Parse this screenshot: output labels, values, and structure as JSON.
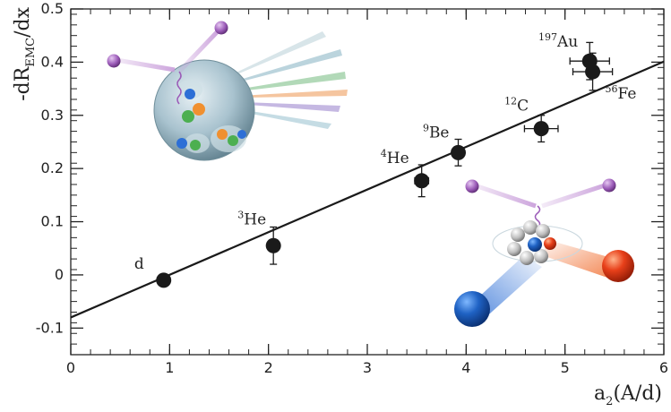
{
  "chart_data": {
    "type": "scatter",
    "title": "",
    "xlabel": "a",
    "xlabel_sub": "2",
    "xlabel_tail": "(A/d)",
    "ylabel": "-dR",
    "ylabel_sub": "EMC",
    "ylabel_tail": "/dx",
    "xlim": [
      0,
      6
    ],
    "ylim": [
      -0.15,
      0.5
    ],
    "xticks": [
      0,
      1,
      2,
      3,
      4,
      5,
      6
    ],
    "xtick_labels": [
      "0",
      "1",
      "2",
      "3",
      "4",
      "5",
      "6"
    ],
    "yticks": [
      -0.1,
      0,
      0.1,
      0.2,
      0.3,
      0.4,
      0.5
    ],
    "ytick_labels": [
      "-0.1",
      "0",
      "0.1",
      "0.2",
      "0.3",
      "0.4",
      "0.5"
    ],
    "grid": false,
    "points": [
      {
        "label": "d",
        "mass": "",
        "x": 0.94,
        "y": -0.01,
        "xerr": 0.0,
        "yerr": 0.0
      },
      {
        "label": "He",
        "mass": "3",
        "x": 2.05,
        "y": 0.055,
        "xerr": 0.0,
        "yerr": 0.035
      },
      {
        "label": "He",
        "mass": "4",
        "x": 3.55,
        "y": 0.177,
        "xerr": 0.07,
        "yerr": 0.03
      },
      {
        "label": "Be",
        "mass": "9",
        "x": 3.92,
        "y": 0.23,
        "xerr": 0.06,
        "yerr": 0.025
      },
      {
        "label": "C",
        "mass": "12",
        "x": 4.76,
        "y": 0.275,
        "xerr": 0.17,
        "yerr": 0.025
      },
      {
        "label": "Au",
        "mass": "197",
        "x": 5.25,
        "y": 0.402,
        "xerr": 0.2,
        "yerr": 0.035
      },
      {
        "label": "Fe",
        "mass": "56",
        "x": 5.28,
        "y": 0.382,
        "xerr": 0.2,
        "yerr": 0.035
      }
    ],
    "fit_line": {
      "x": [
        0,
        6
      ],
      "y": [
        -0.08,
        0.401
      ]
    },
    "colors": {
      "points": "#1a1a1a",
      "line": "#1a1a1a",
      "axis": "#222222"
    }
  }
}
